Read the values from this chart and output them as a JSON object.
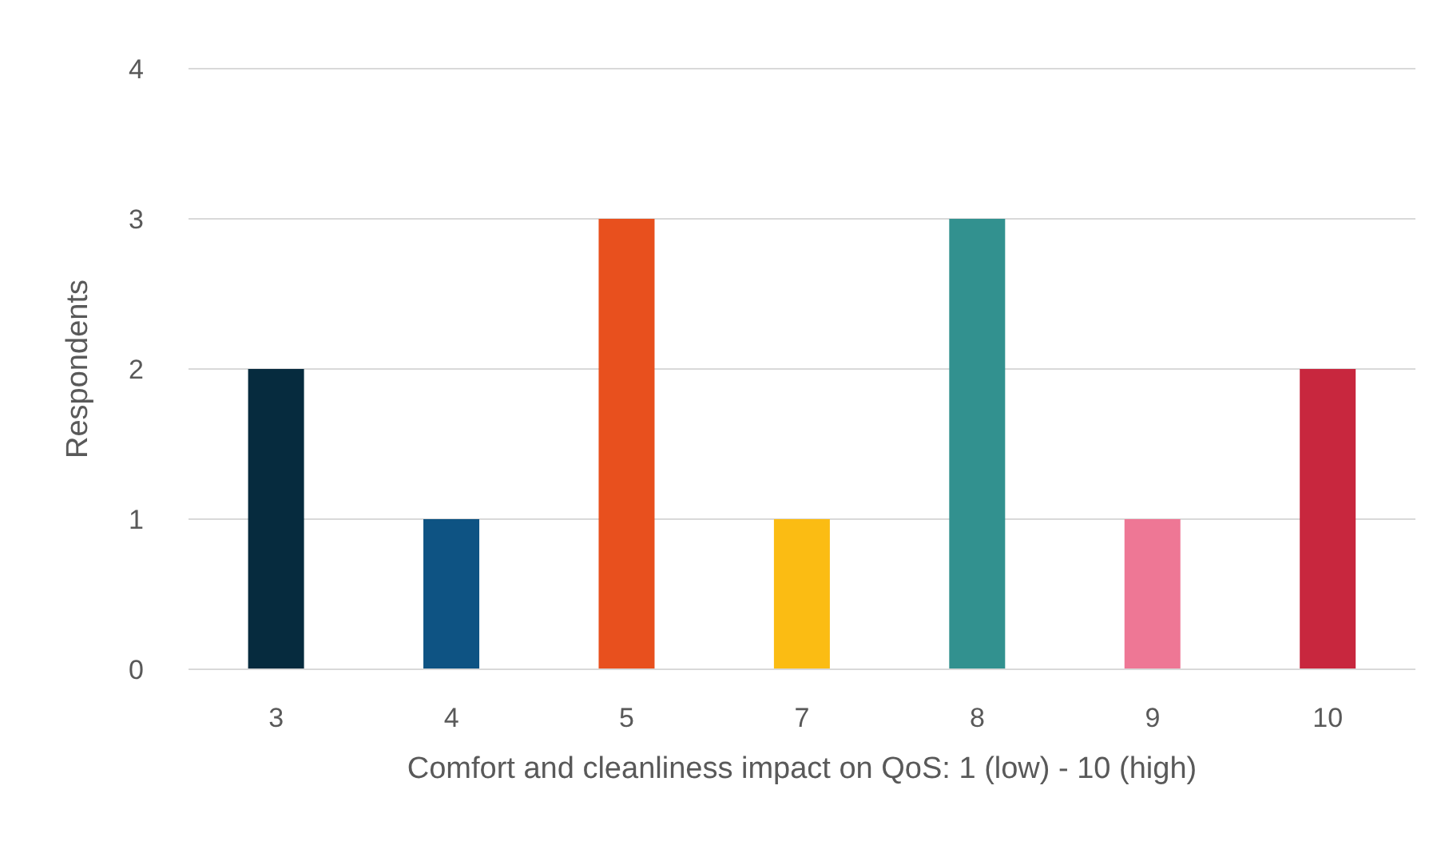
{
  "chart_data": {
    "type": "bar",
    "xlabel": "Comfort and cleanliness impact on QoS: 1 (low) - 10 (high)",
    "ylabel": "Respondents",
    "categories": [
      "3",
      "4",
      "5",
      "7",
      "8",
      "9",
      "10"
    ],
    "values": [
      2,
      1,
      3,
      1,
      3,
      1,
      2
    ],
    "colors": [
      "#062b3e",
      "#0e5383",
      "#e8501e",
      "#fbbc13",
      "#32918f",
      "#ee7795",
      "#c8273e"
    ],
    "ylim": [
      0,
      4
    ],
    "yticks": [
      0,
      1,
      2,
      3,
      4
    ],
    "grid": "y"
  }
}
